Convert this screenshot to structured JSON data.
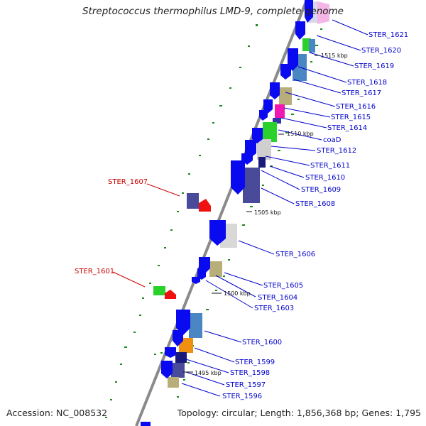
{
  "title": "Streptococcus thermophilus LMD-9, complete genome",
  "accession": "Accession: NC_008532",
  "topology_text": "Topology: circular;",
  "length_text": "Length: 1,856,368 bp;",
  "genes_text": "Genes: 1,795",
  "tick_labels": [
    "1515 kbp",
    "1510 kbp",
    "1505 kbp",
    "1500 kbp",
    "1495 kbp"
  ],
  "colors": {
    "label_blue": "#0000cc",
    "label_red": "#cc0000",
    "backbone": "#888888"
  },
  "gene_labels": [
    {
      "text": "STER_1621",
      "color": "blue"
    },
    {
      "text": "STER_1620",
      "color": "blue"
    },
    {
      "text": "STER_1619",
      "color": "blue"
    },
    {
      "text": "STER_1618",
      "color": "blue"
    },
    {
      "text": "STER_1617",
      "color": "blue"
    },
    {
      "text": "STER_1616",
      "color": "blue"
    },
    {
      "text": "STER_1615",
      "color": "blue"
    },
    {
      "text": "STER_1614",
      "color": "blue"
    },
    {
      "text": "coaD",
      "color": "blue"
    },
    {
      "text": "STER_1612",
      "color": "blue"
    },
    {
      "text": "STER_1611",
      "color": "blue"
    },
    {
      "text": "STER_1610",
      "color": "blue"
    },
    {
      "text": "STER_1609",
      "color": "blue"
    },
    {
      "text": "STER_1608",
      "color": "blue"
    },
    {
      "text": "STER_1607",
      "color": "red"
    },
    {
      "text": "STER_1606",
      "color": "blue"
    },
    {
      "text": "STER_1605",
      "color": "blue"
    },
    {
      "text": "STER_1601",
      "color": "red"
    },
    {
      "text": "STER_1604",
      "color": "blue"
    },
    {
      "text": "STER_1603",
      "color": "blue"
    },
    {
      "text": "STER_1600",
      "color": "blue"
    },
    {
      "text": "STER_1599",
      "color": "blue"
    },
    {
      "text": "STER_1598",
      "color": "blue"
    },
    {
      "text": "STER_1597",
      "color": "blue"
    },
    {
      "text": "STER_1596",
      "color": "blue"
    }
  ]
}
